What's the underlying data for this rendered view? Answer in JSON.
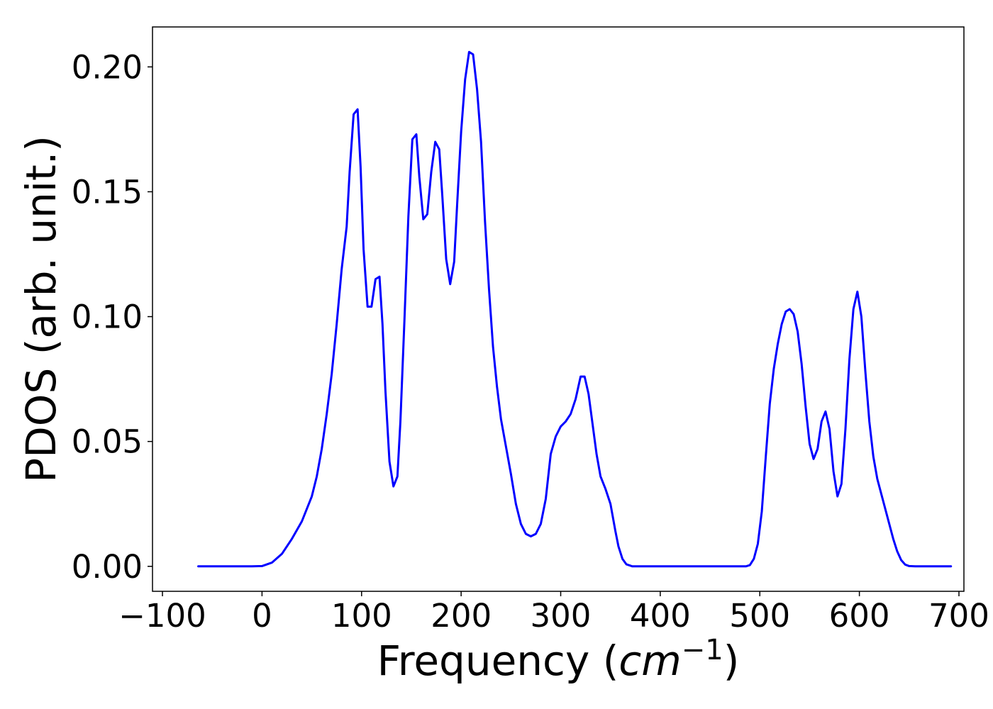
{
  "chart_data": {
    "type": "line",
    "title": "",
    "xlabel": {
      "text": "Frequency (",
      "unit_base": "cm",
      "unit_exponent": "−1",
      "close": ")"
    },
    "ylabel": "PDOS (arb. unit.)",
    "xlim": [
      -110,
      705
    ],
    "ylim": [
      -0.01,
      0.216
    ],
    "x_ticks": [
      -100,
      0,
      100,
      200,
      300,
      400,
      500,
      600,
      700
    ],
    "x_tick_labels": [
      "−100",
      "0",
      "100",
      "200",
      "300",
      "400",
      "500",
      "600",
      "700"
    ],
    "y_ticks": [
      0.0,
      0.05,
      0.1,
      0.15,
      0.2
    ],
    "y_tick_labels": [
      "0.00",
      "0.05",
      "0.10",
      "0.15",
      "0.20"
    ],
    "grid": false,
    "series": [
      {
        "color": "#0000ff",
        "points": [
          [
            -64,
            0.0
          ],
          [
            -10,
            0.0
          ],
          [
            0,
            0.0001
          ],
          [
            10,
            0.0015
          ],
          [
            20,
            0.005
          ],
          [
            30,
            0.011
          ],
          [
            40,
            0.018
          ],
          [
            50,
            0.028
          ],
          [
            55,
            0.036
          ],
          [
            60,
            0.047
          ],
          [
            65,
            0.061
          ],
          [
            70,
            0.077
          ],
          [
            75,
            0.097
          ],
          [
            80,
            0.119
          ],
          [
            85,
            0.136
          ],
          [
            88,
            0.158
          ],
          [
            92,
            0.181
          ],
          [
            96,
            0.183
          ],
          [
            99,
            0.16
          ],
          [
            102,
            0.127
          ],
          [
            106,
            0.104
          ],
          [
            110,
            0.104
          ],
          [
            114,
            0.115
          ],
          [
            118,
            0.116
          ],
          [
            121,
            0.097
          ],
          [
            124,
            0.07
          ],
          [
            128,
            0.042
          ],
          [
            132,
            0.032
          ],
          [
            136,
            0.036
          ],
          [
            139,
            0.058
          ],
          [
            143,
            0.098
          ],
          [
            147,
            0.14
          ],
          [
            151,
            0.171
          ],
          [
            155,
            0.173
          ],
          [
            158,
            0.156
          ],
          [
            162,
            0.139
          ],
          [
            166,
            0.141
          ],
          [
            170,
            0.158
          ],
          [
            174,
            0.17
          ],
          [
            178,
            0.167
          ],
          [
            181,
            0.149
          ],
          [
            185,
            0.123
          ],
          [
            189,
            0.113
          ],
          [
            193,
            0.122
          ],
          [
            196,
            0.145
          ],
          [
            200,
            0.174
          ],
          [
            204,
            0.195
          ],
          [
            208,
            0.206
          ],
          [
            212,
            0.205
          ],
          [
            216,
            0.191
          ],
          [
            220,
            0.17
          ],
          [
            224,
            0.138
          ],
          [
            228,
            0.111
          ],
          [
            232,
            0.088
          ],
          [
            236,
            0.072
          ],
          [
            240,
            0.059
          ],
          [
            245,
            0.048
          ],
          [
            250,
            0.037
          ],
          [
            255,
            0.025
          ],
          [
            260,
            0.017
          ],
          [
            265,
            0.013
          ],
          [
            270,
            0.012
          ],
          [
            275,
            0.013
          ],
          [
            280,
            0.017
          ],
          [
            285,
            0.027
          ],
          [
            290,
            0.045
          ],
          [
            295,
            0.052
          ],
          [
            300,
            0.056
          ],
          [
            305,
            0.058
          ],
          [
            310,
            0.061
          ],
          [
            315,
            0.067
          ],
          [
            320,
            0.076
          ],
          [
            324,
            0.076
          ],
          [
            328,
            0.069
          ],
          [
            332,
            0.057
          ],
          [
            336,
            0.045
          ],
          [
            340,
            0.036
          ],
          [
            345,
            0.031
          ],
          [
            350,
            0.025
          ],
          [
            355,
            0.014
          ],
          [
            358,
            0.008
          ],
          [
            362,
            0.003
          ],
          [
            366,
            0.0008
          ],
          [
            372,
            0.0
          ],
          [
            486,
            0.0
          ],
          [
            490,
            0.0005
          ],
          [
            494,
            0.003
          ],
          [
            498,
            0.009
          ],
          [
            502,
            0.022
          ],
          [
            506,
            0.044
          ],
          [
            510,
            0.065
          ],
          [
            514,
            0.079
          ],
          [
            518,
            0.089
          ],
          [
            522,
            0.097
          ],
          [
            526,
            0.102
          ],
          [
            530,
            0.103
          ],
          [
            534,
            0.101
          ],
          [
            538,
            0.094
          ],
          [
            542,
            0.081
          ],
          [
            546,
            0.064
          ],
          [
            550,
            0.049
          ],
          [
            554,
            0.043
          ],
          [
            558,
            0.047
          ],
          [
            562,
            0.058
          ],
          [
            566,
            0.062
          ],
          [
            570,
            0.055
          ],
          [
            574,
            0.038
          ],
          [
            578,
            0.028
          ],
          [
            582,
            0.033
          ],
          [
            586,
            0.055
          ],
          [
            590,
            0.083
          ],
          [
            594,
            0.103
          ],
          [
            598,
            0.11
          ],
          [
            602,
            0.1
          ],
          [
            606,
            0.078
          ],
          [
            610,
            0.058
          ],
          [
            614,
            0.044
          ],
          [
            618,
            0.035
          ],
          [
            622,
            0.029
          ],
          [
            626,
            0.023
          ],
          [
            630,
            0.017
          ],
          [
            634,
            0.011
          ],
          [
            638,
            0.006
          ],
          [
            642,
            0.0025
          ],
          [
            646,
            0.0007
          ],
          [
            650,
            0.0001
          ],
          [
            656,
            0.0
          ],
          [
            692,
            0.0
          ]
        ]
      }
    ]
  }
}
